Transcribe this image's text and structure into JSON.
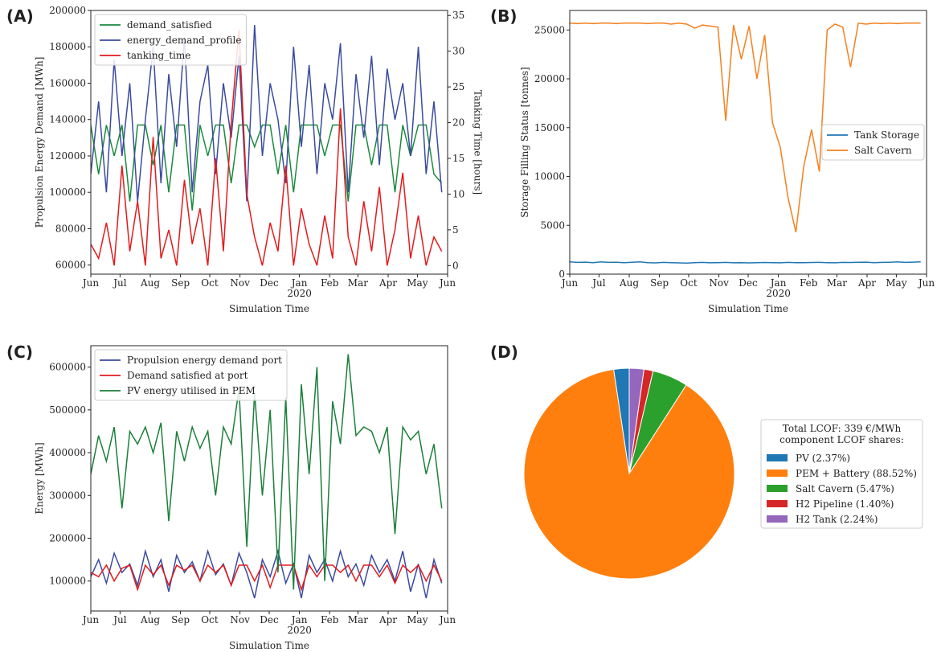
{
  "chart_data": [
    {
      "panel": "(A)",
      "type": "line",
      "x": [
        0,
        8,
        16,
        24,
        32,
        40,
        48,
        56,
        64,
        72,
        80,
        88,
        96,
        104,
        112,
        120,
        128,
        136,
        144,
        152,
        160,
        168,
        176,
        184,
        192,
        200,
        208,
        216,
        224,
        232,
        240,
        248,
        256,
        264,
        272,
        280,
        288,
        296,
        304,
        312,
        320,
        328,
        336,
        344,
        352,
        360
      ],
      "xlim": [
        0,
        366
      ],
      "xticks": [
        {
          "value": 0,
          "label": "Jun"
        },
        {
          "value": 30,
          "label": "Jul"
        },
        {
          "value": 61,
          "label": "Aug"
        },
        {
          "value": 92,
          "label": "Sep"
        },
        {
          "value": 122,
          "label": "Oct"
        },
        {
          "value": 153,
          "label": "Nov"
        },
        {
          "value": 183,
          "label": "Dec"
        },
        {
          "value": 214,
          "label": "Jan"
        },
        {
          "value": 245,
          "label": "Feb"
        },
        {
          "value": 274,
          "label": "Mar"
        },
        {
          "value": 305,
          "label": "Apr"
        },
        {
          "value": 335,
          "label": "May"
        },
        {
          "value": 366,
          "label": "Jun"
        }
      ],
      "xyear": {
        "value": 214,
        "label": "2020"
      },
      "xlabel": "Simulation Time",
      "ylabel": "Propulsion Energy Demand [MWh]",
      "y2label": "Tanking Time [hours]",
      "ylim": [
        55000,
        200000
      ],
      "yticks": [
        60000,
        80000,
        100000,
        120000,
        140000,
        160000,
        180000,
        200000
      ],
      "y2lim": [
        -1.2,
        35.7
      ],
      "y2ticks": [
        0,
        5,
        10,
        15,
        20,
        25,
        30,
        35
      ],
      "legend": "upper left",
      "series": [
        {
          "name": "demand_satisfied",
          "color": "#1b8a3e",
          "values": [
            137000,
            110000,
            137000,
            120000,
            137000,
            95000,
            137000,
            137000,
            115000,
            137000,
            100000,
            137000,
            137000,
            90000,
            137000,
            120000,
            137000,
            137000,
            105000,
            137000,
            137000,
            125000,
            137000,
            137000,
            110000,
            137000,
            100000,
            137000,
            137000,
            137000,
            120000,
            137000,
            137000,
            95000,
            137000,
            137000,
            115000,
            137000,
            137000,
            100000,
            137000,
            120000,
            137000,
            137000,
            110000,
            105000
          ]
        },
        {
          "name": "energy_demand_profile",
          "color": "#3b4ba0",
          "values": [
            110000,
            150000,
            100000,
            173000,
            120000,
            160000,
            95000,
            140000,
            180000,
            105000,
            165000,
            125000,
            185000,
            100000,
            150000,
            170000,
            110000,
            160000,
            130000,
            175000,
            95000,
            192000,
            120000,
            160000,
            140000,
            105000,
            180000,
            125000,
            170000,
            110000,
            160000,
            140000,
            182000,
            100000,
            165000,
            130000,
            175000,
            115000,
            168000,
            140000,
            160000,
            120000,
            180000,
            110000,
            150000,
            100000
          ]
        },
        {
          "name": "tanking_time",
          "color": "#e41a1c",
          "axis": "y2",
          "values": [
            3,
            1,
            6,
            0,
            14,
            2,
            9,
            0,
            18,
            1,
            5,
            0,
            12,
            3,
            8,
            0,
            15,
            2,
            20,
            33,
            10,
            4,
            0,
            6,
            2,
            14,
            0,
            8,
            3,
            0,
            7,
            1,
            22,
            4,
            0,
            9,
            2,
            11,
            0,
            5,
            13,
            1,
            7,
            0,
            4,
            2
          ]
        }
      ]
    },
    {
      "panel": "(B)",
      "type": "line",
      "x": [
        0,
        8,
        16,
        24,
        32,
        40,
        48,
        56,
        64,
        72,
        80,
        88,
        96,
        104,
        112,
        120,
        128,
        136,
        144,
        152,
        160,
        168,
        176,
        184,
        192,
        200,
        208,
        216,
        224,
        232,
        240,
        248,
        256,
        264,
        272,
        280,
        288,
        296,
        304,
        312,
        320,
        328,
        336,
        344,
        352,
        360
      ],
      "xlim": [
        0,
        366
      ],
      "xticks": [
        {
          "value": 0,
          "label": "Jun"
        },
        {
          "value": 30,
          "label": "Jul"
        },
        {
          "value": 61,
          "label": "Aug"
        },
        {
          "value": 92,
          "label": "Sep"
        },
        {
          "value": 122,
          "label": "Oct"
        },
        {
          "value": 153,
          "label": "Nov"
        },
        {
          "value": 183,
          "label": "Dec"
        },
        {
          "value": 214,
          "label": "Jan"
        },
        {
          "value": 245,
          "label": "Feb"
        },
        {
          "value": 274,
          "label": "Mar"
        },
        {
          "value": 305,
          "label": "Apr"
        },
        {
          "value": 335,
          "label": "May"
        },
        {
          "value": 366,
          "label": "Jun"
        }
      ],
      "xyear": {
        "value": 214,
        "label": "2020"
      },
      "xlabel": "Simulation Time",
      "ylabel": "Storage Filling Status [tonnes]",
      "ylim": [
        0,
        27000
      ],
      "yticks": [
        0,
        5000,
        10000,
        15000,
        20000,
        25000
      ],
      "legend": "center right",
      "series": [
        {
          "name": "Tank Storage",
          "color": "#1f77b4",
          "values": [
            1250,
            1200,
            1230,
            1180,
            1250,
            1200,
            1220,
            1180,
            1210,
            1250,
            1180,
            1150,
            1200,
            1180,
            1150,
            1130,
            1170,
            1200,
            1160,
            1180,
            1200,
            1160,
            1180,
            1150,
            1170,
            1190,
            1180,
            1160,
            1200,
            1180,
            1170,
            1190,
            1200,
            1180,
            1160,
            1200,
            1190,
            1210,
            1230,
            1180,
            1200,
            1220,
            1250,
            1200,
            1230,
            1260
          ]
        },
        {
          "name": "Salt Cavern",
          "color": "#f5801e",
          "values": [
            25700,
            25650,
            25700,
            25650,
            25700,
            25700,
            25650,
            25700,
            25700,
            25700,
            25650,
            25700,
            25700,
            25600,
            25700,
            25600,
            25200,
            25500,
            25400,
            25300,
            15700,
            25500,
            22000,
            25400,
            20000,
            24500,
            15500,
            13000,
            7800,
            4300,
            11000,
            14800,
            10500,
            25000,
            25600,
            25300,
            21200,
            25700,
            25600,
            25700,
            25650,
            25700,
            25650,
            25700,
            25700,
            25700
          ]
        }
      ]
    },
    {
      "panel": "(C)",
      "type": "line",
      "x": [
        0,
        8,
        16,
        24,
        32,
        40,
        48,
        56,
        64,
        72,
        80,
        88,
        96,
        104,
        112,
        120,
        128,
        136,
        144,
        152,
        160,
        168,
        176,
        184,
        192,
        200,
        208,
        216,
        224,
        232,
        240,
        248,
        256,
        264,
        272,
        280,
        288,
        296,
        304,
        312,
        320,
        328,
        336,
        344,
        352,
        360
      ],
      "xlim": [
        0,
        366
      ],
      "xticks": [
        {
          "value": 0,
          "label": "Jun"
        },
        {
          "value": 30,
          "label": "Jul"
        },
        {
          "value": 61,
          "label": "Aug"
        },
        {
          "value": 92,
          "label": "Sep"
        },
        {
          "value": 122,
          "label": "Oct"
        },
        {
          "value": 153,
          "label": "Nov"
        },
        {
          "value": 183,
          "label": "Dec"
        },
        {
          "value": 214,
          "label": "Jan"
        },
        {
          "value": 245,
          "label": "Feb"
        },
        {
          "value": 274,
          "label": "Mar"
        },
        {
          "value": 305,
          "label": "Apr"
        },
        {
          "value": 335,
          "label": "May"
        },
        {
          "value": 366,
          "label": "Jun"
        }
      ],
      "xyear": {
        "value": 214,
        "label": "2020"
      },
      "xlabel": "Simulation Time",
      "ylabel": "Energy [MWh]",
      "ylim": [
        30000,
        650000
      ],
      "yticks": [
        100000,
        200000,
        300000,
        400000,
        500000,
        600000
      ],
      "legend": "upper left",
      "series": [
        {
          "name": "Propulsion energy demand port",
          "color": "#3b4ba0",
          "values": [
            110000,
            150000,
            95000,
            165000,
            120000,
            140000,
            90000,
            170000,
            110000,
            150000,
            75000,
            160000,
            120000,
            145000,
            100000,
            170000,
            115000,
            140000,
            90000,
            165000,
            120000,
            60000,
            150000,
            110000,
            170000,
            95000,
            140000,
            60000,
            160000,
            120000,
            150000,
            100000,
            170000,
            110000,
            140000,
            90000,
            160000,
            120000,
            150000,
            100000,
            170000,
            75000,
            140000,
            60000,
            150000,
            95000
          ]
        },
        {
          "name": "Demand satisfied at port",
          "color": "#e41a1c",
          "values": [
            120000,
            110000,
            137000,
            100000,
            130000,
            137000,
            80000,
            137000,
            115000,
            137000,
            90000,
            137000,
            125000,
            137000,
            100000,
            137000,
            120000,
            137000,
            90000,
            137000,
            137000,
            100000,
            137000,
            85000,
            137000,
            137000,
            137000,
            80000,
            137000,
            110000,
            137000,
            137000,
            120000,
            137000,
            100000,
            137000,
            137000,
            110000,
            137000,
            95000,
            137000,
            120000,
            137000,
            100000,
            137000,
            100000
          ]
        },
        {
          "name": "PV energy utilised in PEM",
          "color": "#1b7f3a",
          "values": [
            350000,
            440000,
            380000,
            460000,
            270000,
            450000,
            420000,
            460000,
            400000,
            470000,
            240000,
            450000,
            380000,
            460000,
            410000,
            450000,
            300000,
            460000,
            420000,
            550000,
            180000,
            540000,
            300000,
            500000,
            120000,
            530000,
            80000,
            560000,
            350000,
            600000,
            100000,
            520000,
            420000,
            630000,
            440000,
            460000,
            450000,
            400000,
            460000,
            210000,
            460000,
            430000,
            450000,
            350000,
            420000,
            270000
          ]
        }
      ]
    },
    {
      "panel": "(D)",
      "type": "pie",
      "legend_title": [
        "Total LCOF: 339 €/MWh",
        "component LCOF shares:"
      ],
      "categories": [
        "PV (2.37%)",
        "PEM + Battery (88.52%)",
        "Salt Cavern (5.47%)",
        "H2 Pipeline (1.40%)",
        "H2 Tank (2.24%)"
      ],
      "values": [
        2.37,
        88.52,
        5.47,
        1.4,
        2.24
      ],
      "colors": [
        "#1f77b4",
        "#ff7f0e",
        "#2ca02c",
        "#d62728",
        "#9467bd"
      ]
    }
  ]
}
